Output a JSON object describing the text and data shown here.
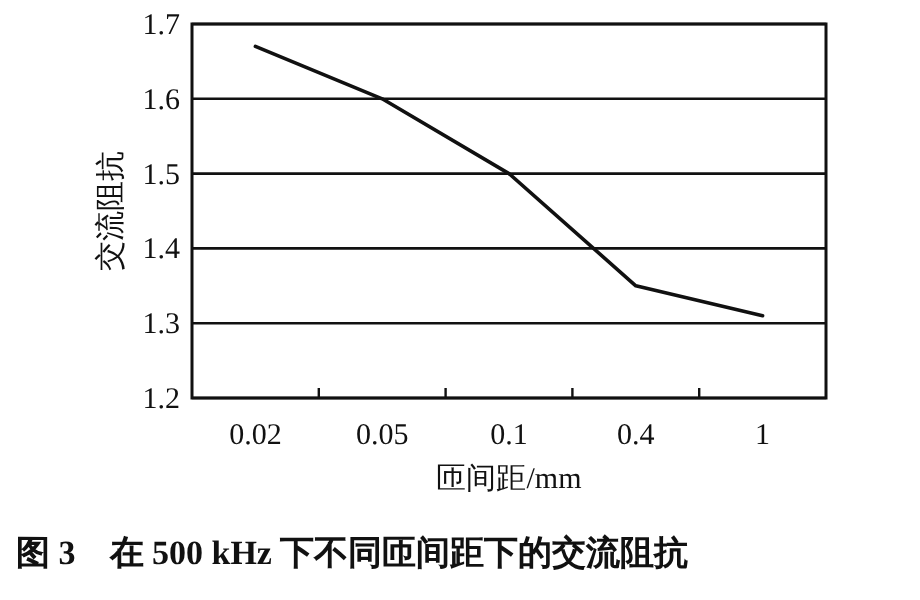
{
  "chart_data": {
    "type": "line",
    "title": "图 3　在 500 kHz 下不同匝间距下的交流阻抗",
    "xlabel": "匝间距/mm",
    "ylabel": "交流阻抗",
    "categories": [
      "0.02",
      "0.05",
      "0.1",
      "0.4",
      "1"
    ],
    "series": [
      {
        "color": "#111111",
        "values": [
          1.67,
          1.6,
          1.5,
          1.35,
          1.31
        ]
      }
    ],
    "ylim": [
      1.2,
      1.7
    ],
    "yticks": [
      1.2,
      1.3,
      1.4,
      1.5,
      1.6,
      1.7
    ],
    "grid": "y",
    "marker": "none",
    "line_style": "solid"
  }
}
